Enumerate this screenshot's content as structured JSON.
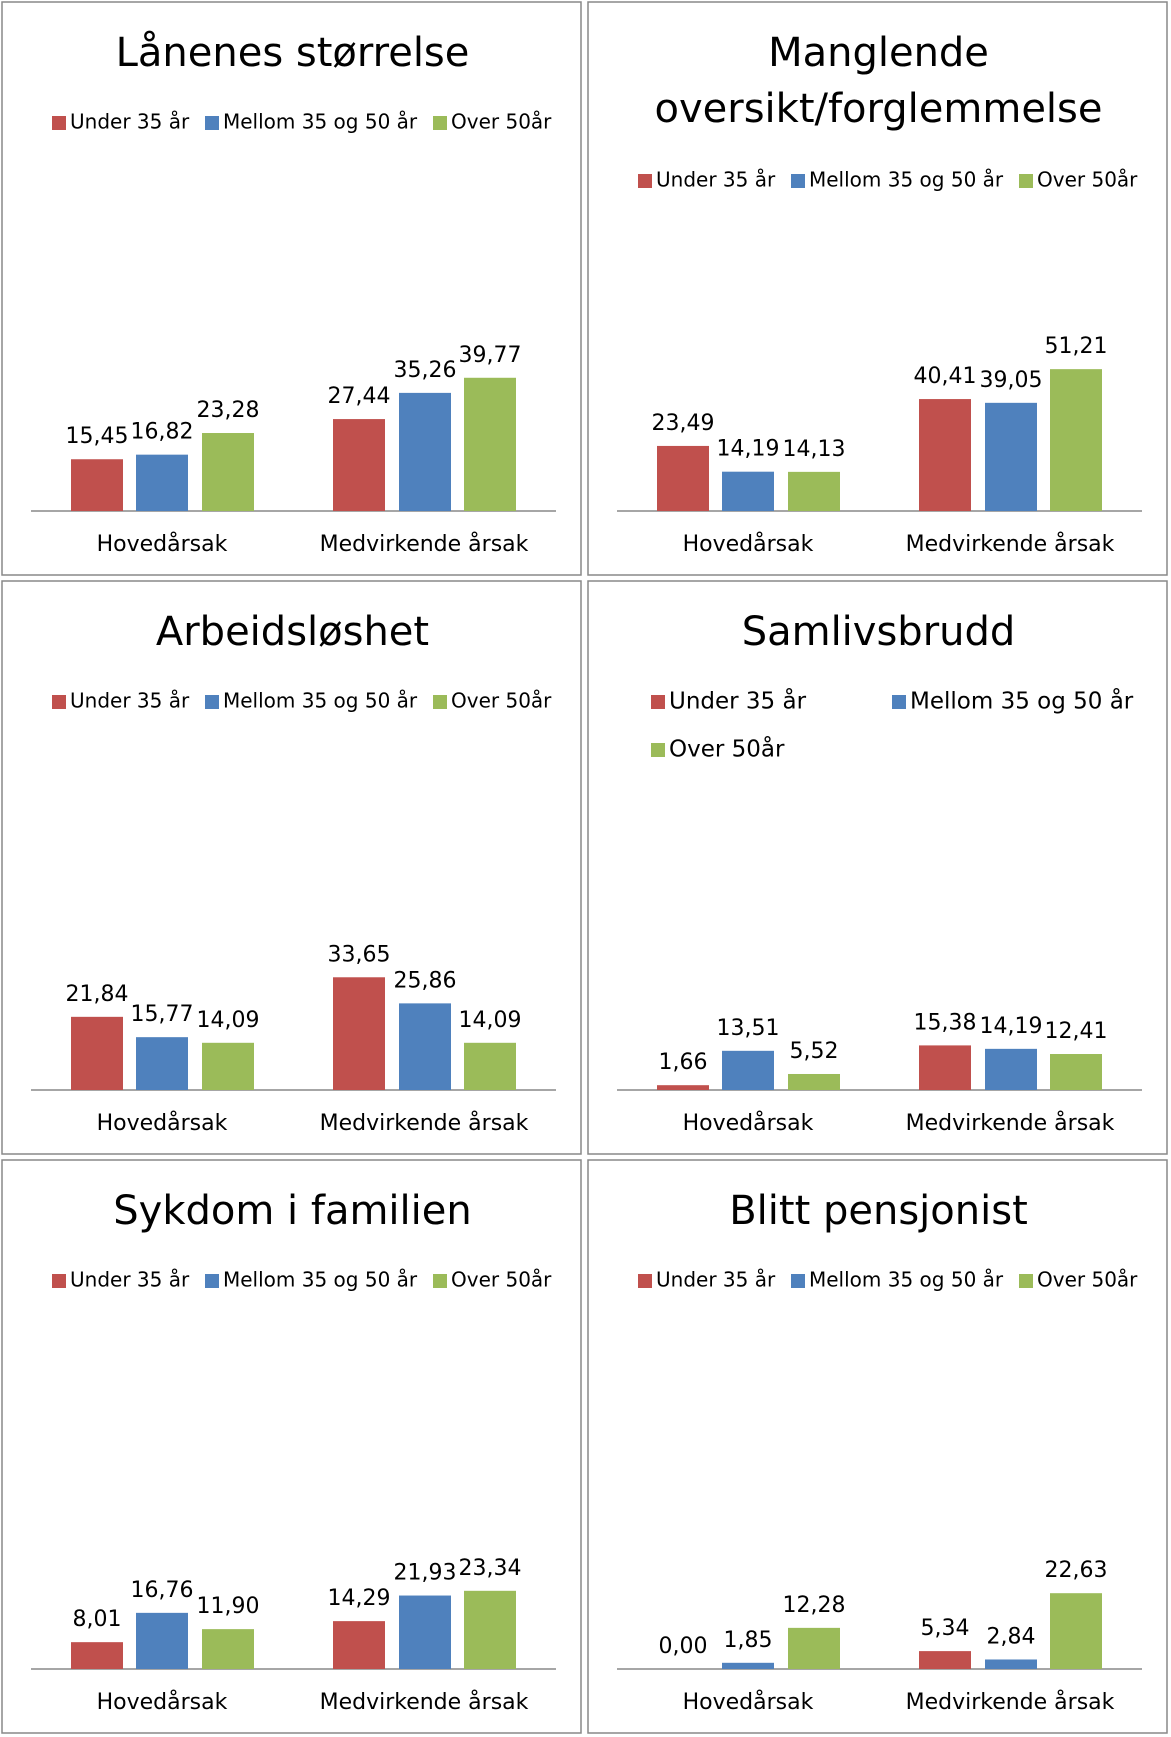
{
  "chart_data": [
    {
      "type": "bar",
      "title": "Lånenes størrelse",
      "categories": [
        "Hovedårsak",
        "Medvirkende årsak"
      ],
      "series": [
        {
          "name": "Under 35 år",
          "color": "#c0504d",
          "values": [
            15.45,
            27.44
          ],
          "value_labels": [
            "15,45",
            "27,44"
          ]
        },
        {
          "name": "Mellom 35 og 50 år",
          "color": "#4f81bd",
          "values": [
            16.82,
            35.26
          ],
          "value_labels": [
            "16,82",
            "35,26"
          ]
        },
        {
          "name": "Over 50år",
          "color": "#9bbb59",
          "values": [
            23.28,
            39.77
          ],
          "value_labels": [
            "23,28",
            "39,77"
          ]
        }
      ]
    },
    {
      "type": "bar",
      "title": [
        "Manglende",
        "oversikt/forglemmelse"
      ],
      "categories": [
        "Hovedårsak",
        "Medvirkende årsak"
      ],
      "series": [
        {
          "name": "Under 35 år",
          "color": "#c0504d",
          "values": [
            23.49,
            40.41
          ],
          "value_labels": [
            "23,49",
            "40,41"
          ]
        },
        {
          "name": "Mellom 35 og 50 år",
          "color": "#4f81bd",
          "values": [
            14.19,
            39.05
          ],
          "value_labels": [
            "14,19",
            "39,05"
          ]
        },
        {
          "name": "Over 50år",
          "color": "#9bbb59",
          "values": [
            14.13,
            51.21
          ],
          "value_labels": [
            "14,13",
            "51,21"
          ]
        }
      ]
    },
    {
      "type": "bar",
      "title": "Arbeidsløshet",
      "categories": [
        "Hovedårsak",
        "Medvirkende årsak"
      ],
      "series": [
        {
          "name": "Under 35 år",
          "color": "#c0504d",
          "values": [
            21.84,
            33.65
          ],
          "value_labels": [
            "21,84",
            "33,65"
          ]
        },
        {
          "name": "Mellom 35 og 50 år",
          "color": "#4f81bd",
          "values": [
            15.77,
            25.86
          ],
          "value_labels": [
            "15,77",
            "25,86"
          ]
        },
        {
          "name": "Over 50år",
          "color": "#9bbb59",
          "values": [
            14.09,
            14.09
          ],
          "value_labels": [
            "14,09",
            "14,09"
          ]
        }
      ]
    },
    {
      "type": "bar",
      "title": "Samlivsbrudd",
      "categories": [
        "Hovedårsak",
        "Medvirkende årsak"
      ],
      "series": [
        {
          "name": "Under 35 år",
          "color": "#c0504d",
          "values": [
            1.66,
            15.38
          ],
          "value_labels": [
            "1,66",
            "15,38"
          ]
        },
        {
          "name": "Mellom 35 og 50 år",
          "color": "#4f81bd",
          "values": [
            13.51,
            14.19
          ],
          "value_labels": [
            "13,51",
            "14,19"
          ]
        },
        {
          "name": "Over 50år",
          "color": "#9bbb59",
          "values": [
            5.52,
            12.41
          ],
          "value_labels": [
            "5,52",
            "12,41"
          ]
        }
      ]
    },
    {
      "type": "bar",
      "title": "Sykdom i familien",
      "categories": [
        "Hovedårsak",
        "Medvirkende årsak"
      ],
      "series": [
        {
          "name": "Under 35 år",
          "color": "#c0504d",
          "values": [
            8.01,
            14.29
          ],
          "value_labels": [
            "8,01",
            "14,29"
          ]
        },
        {
          "name": "Mellom 35 og 50 år",
          "color": "#4f81bd",
          "values": [
            16.76,
            21.93
          ],
          "value_labels": [
            "16,76",
            "21,93"
          ]
        },
        {
          "name": "Over 50år",
          "color": "#9bbb59",
          "values": [
            11.9,
            23.34
          ],
          "value_labels": [
            "11,90",
            "23,34"
          ]
        }
      ]
    },
    {
      "type": "bar",
      "title": "Blitt pensjonist",
      "categories": [
        "Hovedårsak",
        "Medvirkende årsak"
      ],
      "series": [
        {
          "name": "Under 35 år",
          "color": "#c0504d",
          "values": [
            0,
            5.34
          ],
          "value_labels": [
            "0,00",
            "5,34"
          ]
        },
        {
          "name": "Mellom 35 og 50 år",
          "color": "#4f81bd",
          "values": [
            1.85,
            2.84
          ],
          "value_labels": [
            "1,85",
            "2,84"
          ]
        },
        {
          "name": "Over 50år",
          "color": "#9bbb59",
          "values": [
            12.28,
            22.63
          ],
          "value_labels": [
            "12,28",
            "22,63"
          ]
        }
      ]
    }
  ]
}
